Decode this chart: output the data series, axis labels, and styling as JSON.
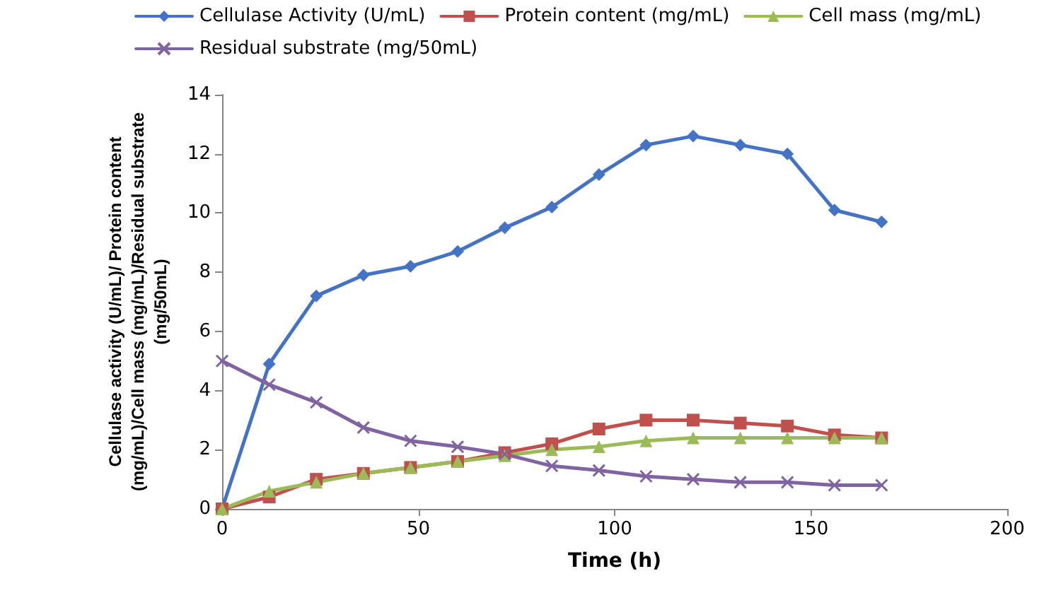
{
  "chart_data": {
    "type": "line",
    "xlabel": "Time (h)",
    "ylabel": "Cellulase activity (U/mL)/ Protein content (mg/mL)/Cell mass (mg/mL)/Residual substrate (mg/50mL)",
    "x": [
      0,
      12,
      24,
      36,
      48,
      60,
      72,
      84,
      96,
      108,
      120,
      132,
      144,
      156,
      168
    ],
    "xlim": [
      0,
      200
    ],
    "xticks": [
      0,
      50,
      100,
      150,
      200
    ],
    "ylim": [
      0,
      14
    ],
    "yticks": [
      0,
      2,
      4,
      6,
      8,
      10,
      12,
      14
    ],
    "grid": false,
    "legend": "top",
    "line_style": "solid",
    "series": [
      {
        "name": "Cellulase Activity (U/mL)",
        "color": "#4472c4",
        "marker": "diamond",
        "values": [
          0,
          4.9,
          7.2,
          7.9,
          8.2,
          8.7,
          9.5,
          10.2,
          11.3,
          12.3,
          12.6,
          12.3,
          12.0,
          10.1,
          9.7
        ]
      },
      {
        "name": "Protein content (mg/mL)",
        "color": "#c0504d",
        "marker": "square",
        "values": [
          0,
          0.4,
          1.0,
          1.2,
          1.4,
          1.6,
          1.9,
          2.2,
          2.7,
          3.0,
          3.0,
          2.9,
          2.8,
          2.5,
          2.4
        ]
      },
      {
        "name": "Cell mass (mg/mL)",
        "color": "#9bbb59",
        "marker": "triangle",
        "values": [
          0,
          0.6,
          0.9,
          1.2,
          1.4,
          1.6,
          1.8,
          2.0,
          2.1,
          2.3,
          2.4,
          2.4,
          2.4,
          2.4,
          2.4
        ]
      },
      {
        "name": "Residual substrate (mg/50mL)",
        "color": "#8064a2",
        "marker": "cross",
        "values": [
          5.0,
          4.2,
          3.6,
          2.75,
          2.3,
          2.1,
          1.85,
          1.45,
          1.3,
          1.1,
          1.0,
          0.9,
          0.9,
          0.8,
          0.8
        ]
      }
    ]
  }
}
